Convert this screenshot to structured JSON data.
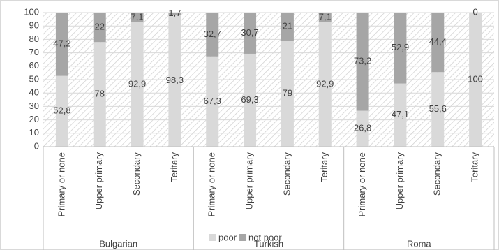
{
  "chart_data": {
    "type": "stacked_bar",
    "categories": [
      "Primary or none",
      "Upper primary",
      "Secondary",
      "Teritary",
      "Primary or none",
      "Upper primary",
      "Secondary",
      "Teritary",
      "Primary or none",
      "Upper primary",
      "Secondary",
      "Teritary"
    ],
    "groups": [
      "Bulgarian",
      "Turkish",
      "Roma"
    ],
    "series": [
      {
        "name": "poor",
        "color": "#d9d9d9",
        "values": [
          52.8,
          78,
          92.9,
          98.3,
          67.3,
          69.3,
          79,
          92.9,
          26.8,
          47.1,
          55.6,
          100
        ],
        "value_labels": [
          "52,8",
          "78",
          "92,9",
          "98,3",
          "67,3",
          "69,3",
          "79",
          "92,9",
          "26,8",
          "47,1",
          "55,6",
          "100"
        ]
      },
      {
        "name": "not poor",
        "color": "#a6a6a6",
        "values": [
          47.2,
          22,
          7.1,
          1.7,
          32.7,
          30.7,
          21,
          7.1,
          73.2,
          52.9,
          44.4,
          0
        ],
        "value_labels": [
          "47,2",
          "22",
          "7,1",
          "1,7",
          "32,7",
          "30,7",
          "21",
          "7,1",
          "73,2",
          "52,9",
          "44,4",
          "0"
        ]
      }
    ],
    "ylim": [
      0,
      100
    ],
    "yticks": [
      0,
      10,
      20,
      30,
      40,
      50,
      60,
      70,
      80,
      90,
      100
    ],
    "grid": true,
    "legend": "bottom"
  }
}
